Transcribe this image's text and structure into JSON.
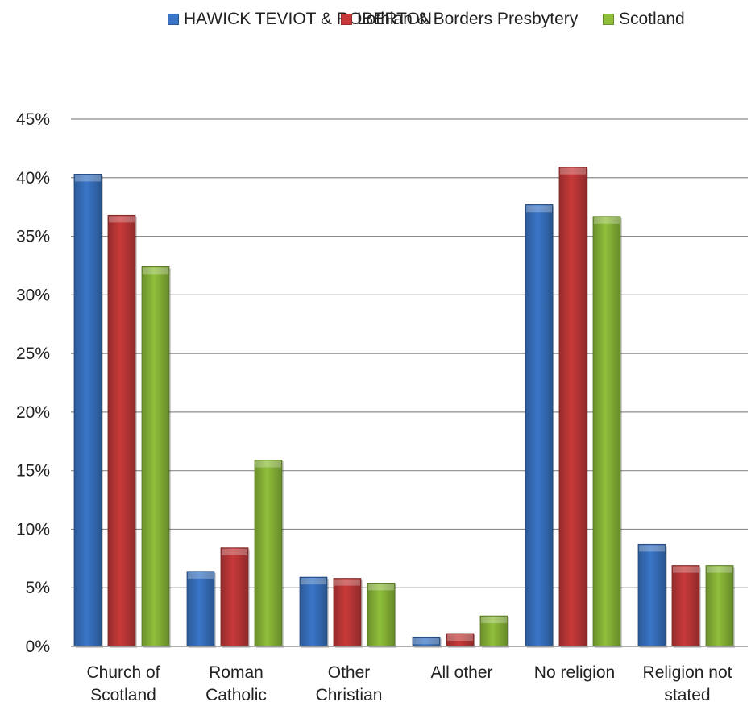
{
  "chart_data": {
    "type": "bar",
    "categories": [
      [
        "Church of",
        "Scotland"
      ],
      [
        "Roman",
        "Catholic"
      ],
      [
        "Other",
        "Christian"
      ],
      [
        "All other"
      ],
      [
        "No religion"
      ],
      [
        "Religion not",
        "stated"
      ]
    ],
    "series": [
      {
        "name": "HAWICK TEVIOT & ROBERTON",
        "color": "#3a76c8",
        "values": [
          40.3,
          6.4,
          5.9,
          0.8,
          37.7,
          8.7
        ]
      },
      {
        "name": "Lothian & Borders Presbytery",
        "color": "#c83a3a",
        "values": [
          36.8,
          8.4,
          5.8,
          1.1,
          40.9,
          6.9
        ]
      },
      {
        "name": "Scotland",
        "color": "#8fbf3a",
        "values": [
          32.4,
          15.9,
          5.4,
          2.6,
          36.7,
          6.9
        ]
      }
    ],
    "yticks": [
      "0%",
      "5%",
      "10%",
      "15%",
      "20%",
      "25%",
      "30%",
      "35%",
      "40%",
      "45%"
    ],
    "ylim": [
      0,
      45
    ],
    "grid": true,
    "legend_position": "top"
  }
}
